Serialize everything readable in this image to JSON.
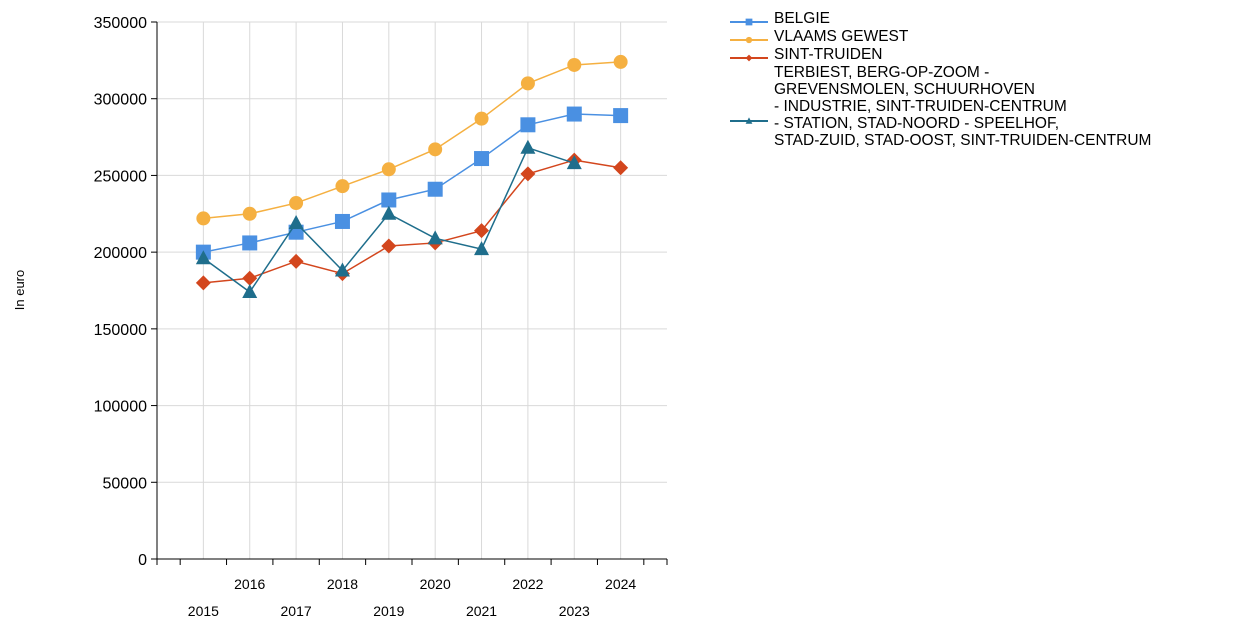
{
  "chart_data": {
    "type": "line",
    "title": "",
    "xlabel": "",
    "ylabel": "In euro",
    "x": [
      "2015",
      "2016",
      "2017",
      "2018",
      "2019",
      "2020",
      "2021",
      "2022",
      "2023",
      "2024"
    ],
    "ylim": [
      0,
      350000
    ],
    "yticks": [
      0,
      50000,
      100000,
      150000,
      200000,
      250000,
      300000,
      350000
    ],
    "grid": true,
    "legend_position": "top-right",
    "series": [
      {
        "name": "BELGIE",
        "color": "#4a90e2",
        "marker": "square",
        "values": [
          200000,
          206000,
          213000,
          220000,
          234000,
          241000,
          261000,
          283000,
          290000,
          289000
        ]
      },
      {
        "name": "VLAAMS GEWEST",
        "color": "#f5b041",
        "marker": "circle",
        "values": [
          222000,
          225000,
          232000,
          243000,
          254000,
          267000,
          287000,
          310000,
          322000,
          324000
        ]
      },
      {
        "name": "SINT-TRUIDEN",
        "color": "#d3461d",
        "marker": "diamond",
        "values": [
          180000,
          183000,
          194000,
          186000,
          204000,
          206000,
          214000,
          251000,
          260000,
          255000
        ]
      },
      {
        "name": "TERBIEST, BERG-OP-ZOOM -\nGREVENSMOLEN, SCHUURHOVEN\n- INDUSTRIE, SINT-TRUIDEN-CENTRUM\n- STATION, STAD-NOORD - SPEELHOF,\nSTAD-ZUID, STAD-OOST, SINT-TRUIDEN-CENTRUM",
        "color": "#1f6e8c",
        "marker": "triangle",
        "values": [
          196000,
          174000,
          219000,
          188000,
          225000,
          209000,
          202000,
          268000,
          258000,
          null
        ]
      }
    ]
  }
}
